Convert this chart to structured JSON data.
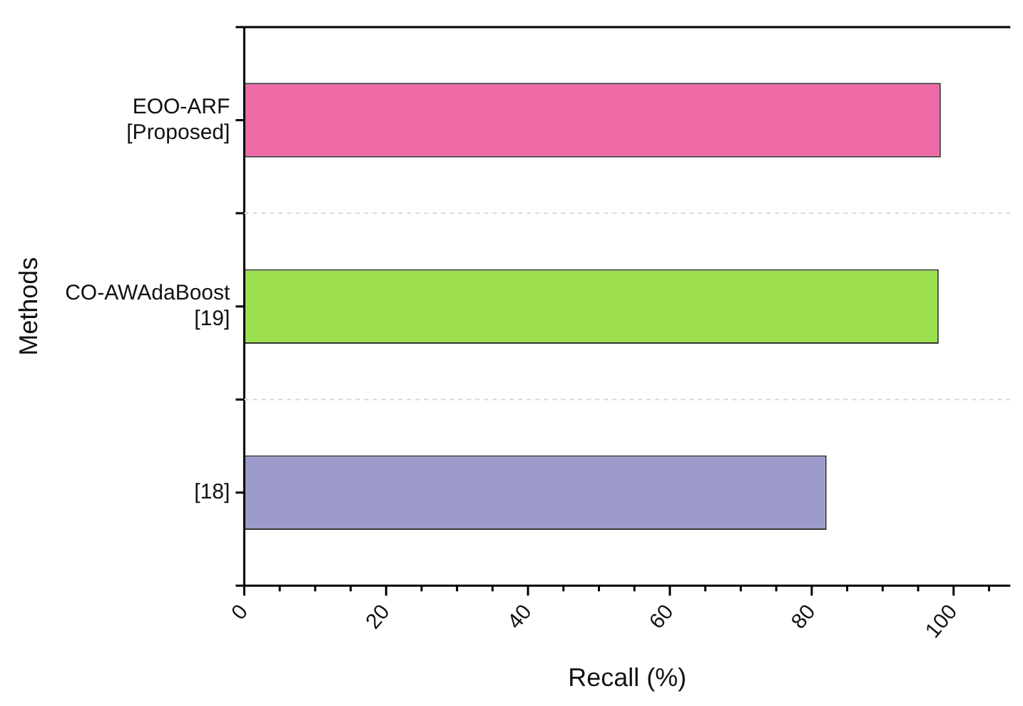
{
  "chart_data": {
    "type": "bar",
    "orientation": "horizontal",
    "xlabel": "Recall (%)",
    "ylabel": "Methods",
    "categories": [
      "EOO-ARF\n[Proposed]",
      "CO-AWAdaBoost\n[19]",
      "[18]"
    ],
    "values": [
      98.2,
      97.9,
      82.1
    ],
    "colors": [
      "#ee6aa7",
      "#9ce050",
      "#9c9acb"
    ],
    "xlim": [
      0,
      108
    ],
    "xticks": [
      0,
      {
        "value": 5,
        "label": null
      },
      20,
      {
        "value": 10,
        "label": null
      },
      {
        "value": 15,
        "label": null
      },
      {
        "value": 25,
        "label": null
      },
      {
        "value": 30,
        "label": null
      },
      {
        "value": 35,
        "label": null
      },
      40,
      {
        "value": 45,
        "label": null
      },
      {
        "value": 50,
        "label": null
      },
      {
        "value": 55,
        "label": null
      },
      60,
      {
        "value": 65,
        "label": null
      },
      {
        "value": 70,
        "label": null
      },
      {
        "value": 75,
        "label": null
      },
      80,
      {
        "value": 85,
        "label": null
      },
      {
        "value": 90,
        "label": null
      },
      {
        "value": 95,
        "label": null
      },
      100,
      {
        "value": 105,
        "label": null
      }
    ],
    "grid": "y"
  }
}
